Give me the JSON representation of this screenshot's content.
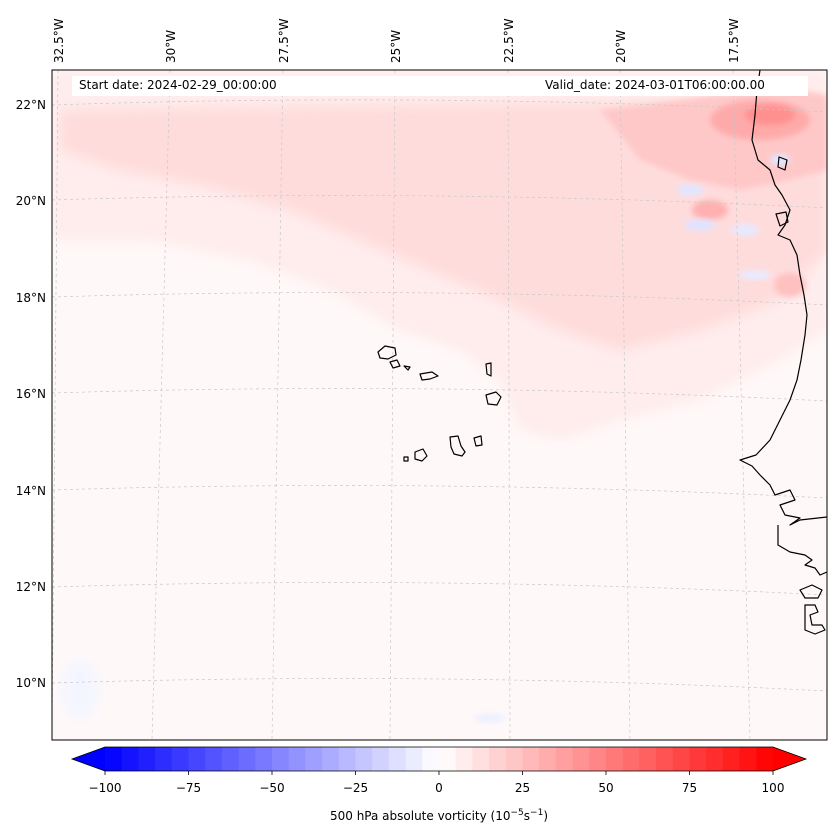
{
  "map": {
    "projection": "Lambert conformal",
    "lon_labels": [
      "32.5°W",
      "30°W",
      "27.5°W",
      "25°W",
      "22.5°W",
      "20°W",
      "17.5°W"
    ],
    "lat_labels": [
      "22°N",
      "20°N",
      "18°N",
      "16°N",
      "14°N",
      "12°N",
      "10°N"
    ],
    "start_date": "Start date: 2024-02-29_00:00:00",
    "valid_date": "Valid_date: 2024-03-01T06:00:00.00",
    "region": "Cape Verde islands and West African coast (Mauritania, Senegal, Gambia, Guinea-Bissau)"
  },
  "colorbar": {
    "label_prefix": "500 hPa absolute vorticity (10",
    "label_exp1": "−5",
    "label_mid": "s",
    "label_exp2": "−1",
    "label_suffix": ")",
    "min": -100,
    "max": 100,
    "ticks": [
      "−100",
      "−75",
      "−50",
      "−25",
      "0",
      "25",
      "50",
      "75",
      "100"
    ],
    "tick_values": [
      -100,
      -75,
      -50,
      -25,
      0,
      25,
      50,
      75,
      100
    ],
    "levels": 41,
    "colormap": "bwr",
    "extend": "both"
  },
  "colors": {
    "negative": "#0000ff",
    "zero": "#ffffff",
    "positive": "#ff0000",
    "coast": "#000000",
    "grid": "#c8c8c8"
  }
}
